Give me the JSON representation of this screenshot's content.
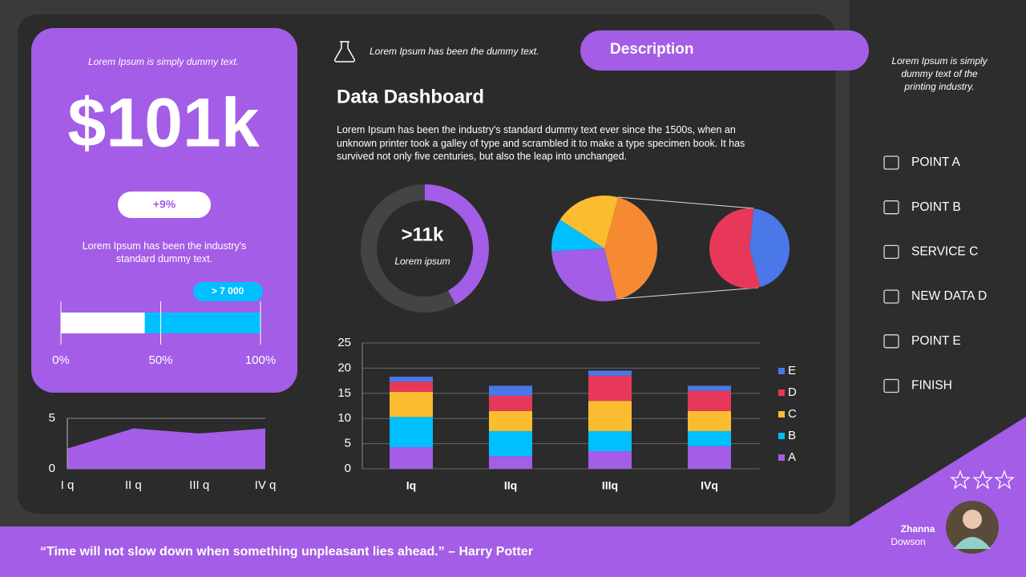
{
  "left_panel": {
    "caption": "Lorem Ipsum is simply dummy text.",
    "amount": "$101k",
    "change": "+9%",
    "note": "Lorem Ipsum has been the industry's standard dummy text.",
    "badge": "> 7 000"
  },
  "header": {
    "caption": "Lorem Ipsum has been the dummy text.",
    "tab": "Description",
    "title": "Data Dashboard",
    "paragraph": "Lorem Ipsum has been the industry's standard dummy text ever since the 1500s, when an unknown printer took a galley of type and scrambled it to make a type specimen book. It has survived not only five centuries, but also the leap into unchanged."
  },
  "sidebar": {
    "caption": "Lorem Ipsum is simply dummy text of the printing industry.",
    "items": [
      "POINT A",
      "POINT B",
      "SERVICE C",
      "NEW DATA D",
      "POINT E",
      "FINISH"
    ],
    "name": "Zhanna",
    "surname": "Dowson"
  },
  "footer": {
    "quote": "“Time will not slow down when something unpleasant lies ahead.” – Harry Potter"
  },
  "chart_data": [
    {
      "type": "progress",
      "value": 42,
      "color": "#ffffff",
      "track_color": "#00bfff",
      "xlim": [
        0,
        100
      ],
      "xticks": [
        {
          "value": 0,
          "label": "0%"
        },
        {
          "value": 50,
          "label": "50%"
        },
        {
          "value": 100,
          "label": "100%"
        }
      ]
    },
    {
      "type": "donut",
      "values": [
        42,
        58
      ],
      "colors": [
        "#a45de6",
        "#444444"
      ],
      "center_value": ">11k",
      "center_label": "Lorem ipsum"
    },
    {
      "type": "pie",
      "values": [
        42,
        28,
        10,
        20
      ],
      "colors": [
        "#f58a33",
        "#a45de6",
        "#00bfff",
        "#fbbd2f"
      ]
    },
    {
      "type": "pie",
      "values": [
        44,
        56
      ],
      "colors": [
        "#4a78e8",
        "#e8385a"
      ]
    },
    {
      "type": "bar",
      "stacked": true,
      "grid": true,
      "categories": [
        "Iq",
        "IIq",
        "IIIq",
        "IVq"
      ],
      "series": [
        {
          "name": "A",
          "color": "#a45de6",
          "values": [
            4.3,
            2.5,
            3.5,
            4.5
          ]
        },
        {
          "name": "B",
          "color": "#00bfff",
          "values": [
            6,
            5,
            4,
            3
          ]
        },
        {
          "name": "C",
          "color": "#fbbd2f",
          "values": [
            5,
            4,
            6,
            4
          ]
        },
        {
          "name": "D",
          "color": "#e8385a",
          "values": [
            2,
            3,
            5,
            4
          ]
        },
        {
          "name": "E",
          "color": "#4a78e8",
          "values": [
            1,
            2,
            1,
            1
          ]
        }
      ],
      "ylim": [
        0,
        25
      ],
      "yticks": [
        0,
        5,
        10,
        15,
        20,
        25
      ]
    },
    {
      "type": "area",
      "categories": [
        "I q",
        "II q",
        "III q",
        "IV q"
      ],
      "values": [
        2,
        4,
        3.5,
        4
      ],
      "color": "#a45de6",
      "ylim": [
        0,
        5
      ],
      "yticks": [
        0,
        5
      ],
      "grid": true
    }
  ]
}
